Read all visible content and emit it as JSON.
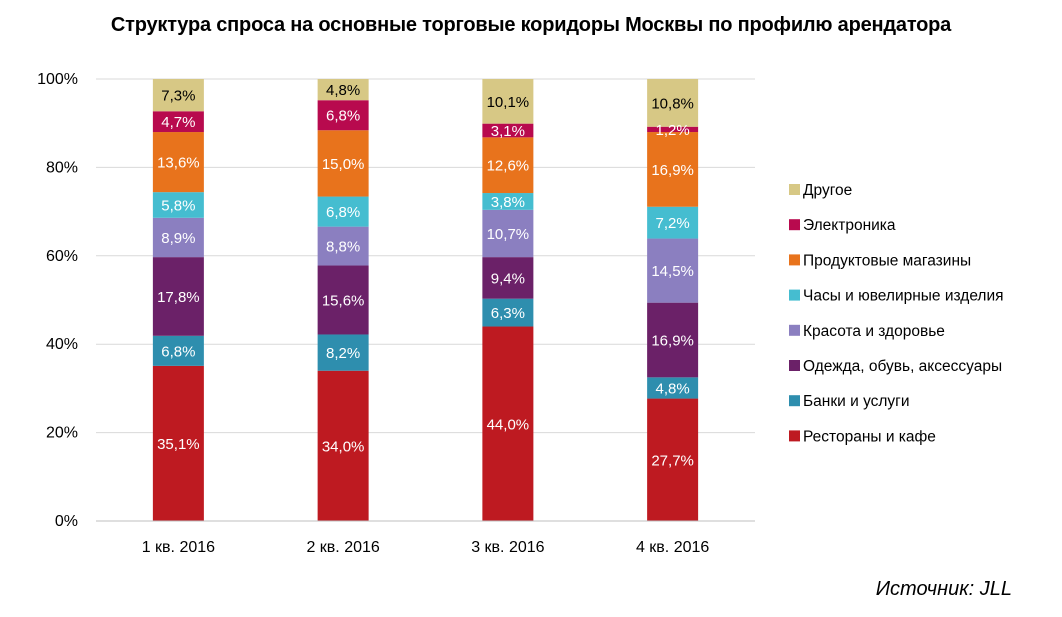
{
  "title": "Структура спроса на основные торговые коридоры Москвы по профилю арендатора",
  "source": "Источник: JLL",
  "chart_data": {
    "type": "bar",
    "stacked": true,
    "percent": true,
    "title": "Структура спроса на основные торговые коридоры Москвы по профилю арендатора",
    "categories": [
      "1 кв. 2016",
      "2 кв. 2016",
      "3 кв. 2016",
      "4 кв. 2016"
    ],
    "ylim": [
      0,
      100
    ],
    "yticks": [
      "0%",
      "20%",
      "40%",
      "60%",
      "80%",
      "100%"
    ],
    "grid": true,
    "legend_position": "right",
    "series": [
      {
        "name": "Рестораны и кафе",
        "color": "#BE1A21",
        "values": [
          35.1,
          34.0,
          44.0,
          27.7
        ],
        "labels": [
          "35,1%",
          "34,0%",
          "44,0%",
          "27,7%"
        ]
      },
      {
        "name": "Банки и услуги",
        "color": "#2E8EAE",
        "values": [
          6.8,
          8.2,
          6.3,
          4.8
        ],
        "labels": [
          "6,8%",
          "8,2%",
          "6,3%",
          "4,8%"
        ]
      },
      {
        "name": "Одежда, обувь, аксессуары",
        "color": "#6B2168",
        "values": [
          17.8,
          15.6,
          9.4,
          16.9
        ],
        "labels": [
          "17,8%",
          "15,6%",
          "9,4%",
          "16,9%"
        ]
      },
      {
        "name": "Красота и здоровье",
        "color": "#8B7FC0",
        "values": [
          8.9,
          8.8,
          10.7,
          14.5
        ],
        "labels": [
          "8,9%",
          "8,8%",
          "10,7%",
          "14,5%"
        ]
      },
      {
        "name": "Часы и ювелирные изделия",
        "color": "#45BDD0",
        "values": [
          5.8,
          6.8,
          3.8,
          7.2
        ],
        "labels": [
          "5,8%",
          "6,8%",
          "3,8%",
          "7,2%"
        ]
      },
      {
        "name": "Продуктовые магазины",
        "color": "#E8731C",
        "values": [
          13.6,
          15.0,
          12.6,
          16.9
        ],
        "labels": [
          "13,6%",
          "15,0%",
          "12,6%",
          "16,9%"
        ]
      },
      {
        "name": "Электроника",
        "color": "#B80A4E",
        "values": [
          4.7,
          6.8,
          3.1,
          1.2
        ],
        "labels": [
          "4,7%",
          "6,8%",
          "3,1%",
          "1,2%"
        ]
      },
      {
        "name": "Другое",
        "color": "#D7C885",
        "values": [
          7.3,
          4.8,
          10.1,
          10.8
        ],
        "labels": [
          "7,3%",
          "4,8%",
          "10,1%",
          "10,8%"
        ]
      }
    ]
  }
}
